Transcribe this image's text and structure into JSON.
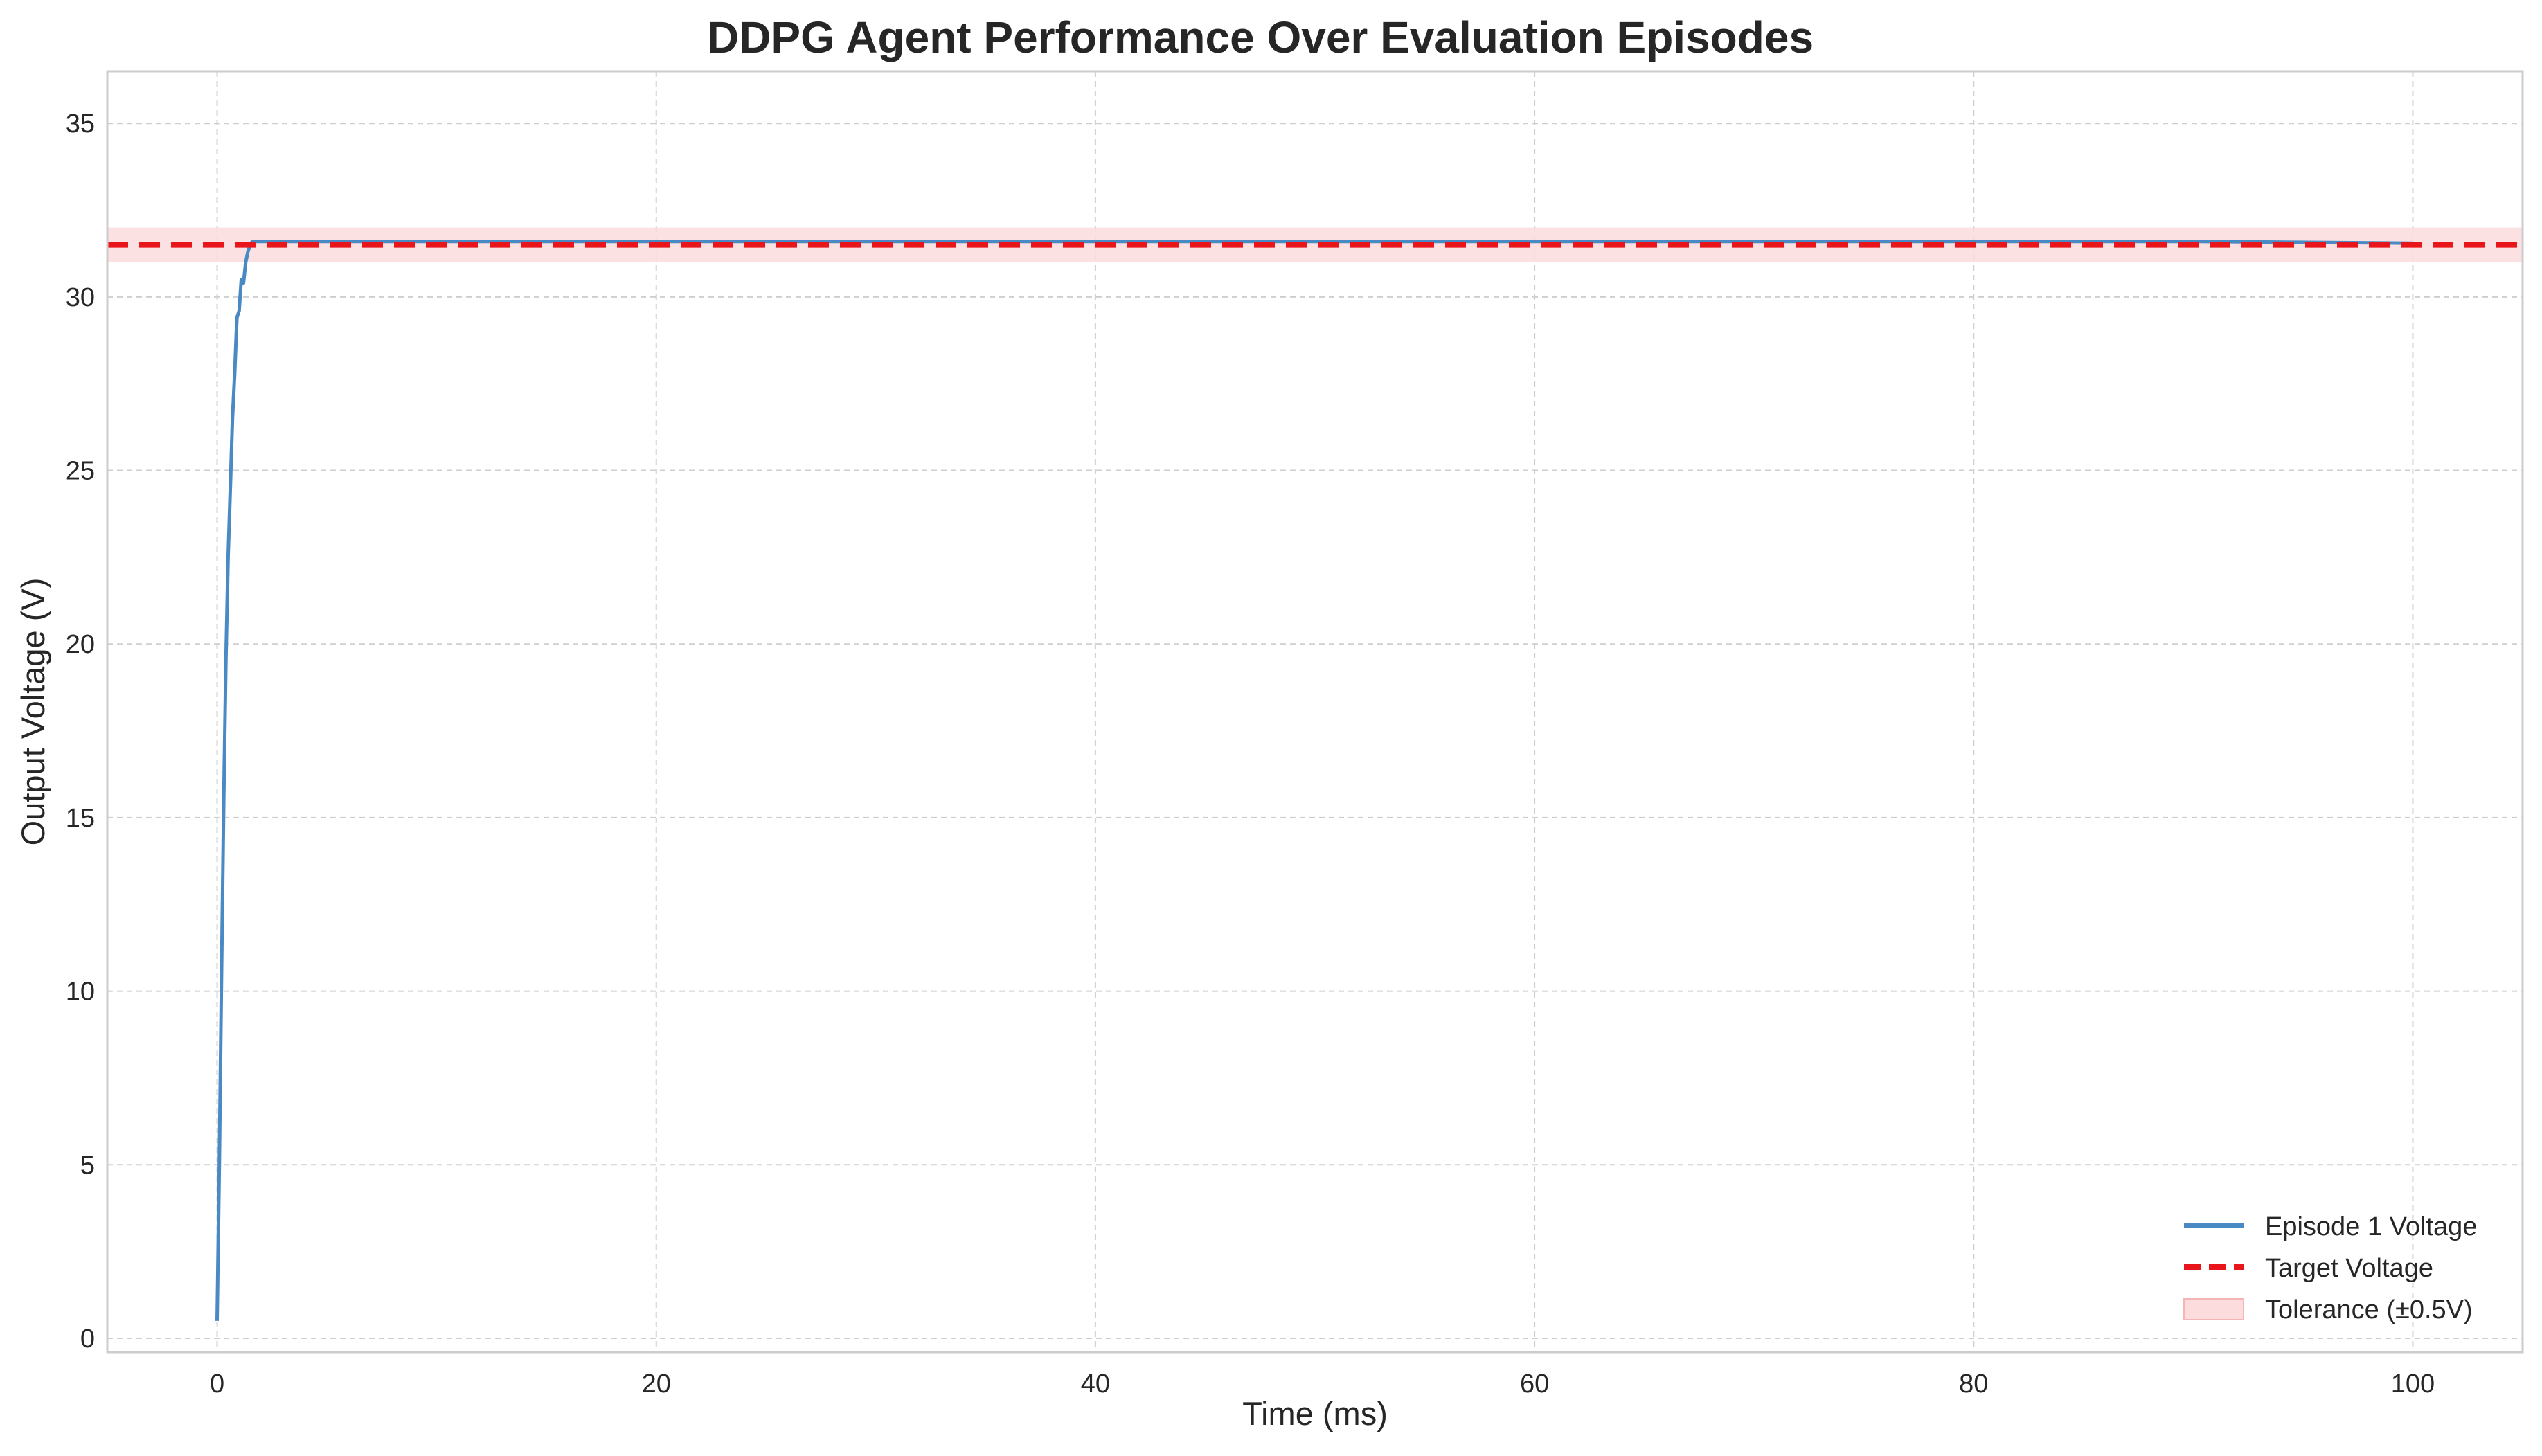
{
  "chart_data": {
    "type": "line",
    "title": "DDPG Agent Performance Over Evaluation Episodes",
    "xlabel": "Time (ms)",
    "ylabel": "Output Voltage (V)",
    "xlim": [
      -5,
      105
    ],
    "ylim": [
      -0.4,
      36.5
    ],
    "x_ticks": [
      0,
      20,
      40,
      60,
      80,
      100
    ],
    "y_ticks": [
      0,
      5,
      10,
      15,
      20,
      25,
      30,
      35
    ],
    "grid": true,
    "legend_position": "bottom-right",
    "series": [
      {
        "name": "Episode 1 Voltage",
        "color": "#4a8ac4",
        "style": "solid",
        "x": [
          0,
          0.1,
          0.2,
          0.3,
          0.4,
          0.5,
          0.6,
          0.7,
          0.8,
          0.9,
          1.0,
          1.1,
          1.2,
          1.3,
          1.4,
          1.5,
          1.6,
          1.8,
          2.0,
          3,
          5,
          10,
          20,
          30,
          40,
          50,
          60,
          70,
          80,
          90,
          100
        ],
        "y": [
          0.5,
          5.0,
          10.5,
          15.5,
          19.5,
          22.5,
          24.5,
          26.5,
          27.8,
          29.4,
          29.6,
          30.5,
          30.4,
          31.0,
          31.3,
          31.5,
          31.6,
          31.6,
          31.6,
          31.6,
          31.6,
          31.6,
          31.6,
          31.6,
          31.6,
          31.6,
          31.6,
          31.6,
          31.6,
          31.6,
          31.55
        ]
      }
    ],
    "target": {
      "name": "Target Voltage",
      "value": 31.5,
      "color": "#e8161b",
      "style": "dashed"
    },
    "tolerance": {
      "name": "Tolerance (±0.5V)",
      "lower": 31.0,
      "upper": 32.0,
      "color": "#fcdcdd"
    }
  }
}
